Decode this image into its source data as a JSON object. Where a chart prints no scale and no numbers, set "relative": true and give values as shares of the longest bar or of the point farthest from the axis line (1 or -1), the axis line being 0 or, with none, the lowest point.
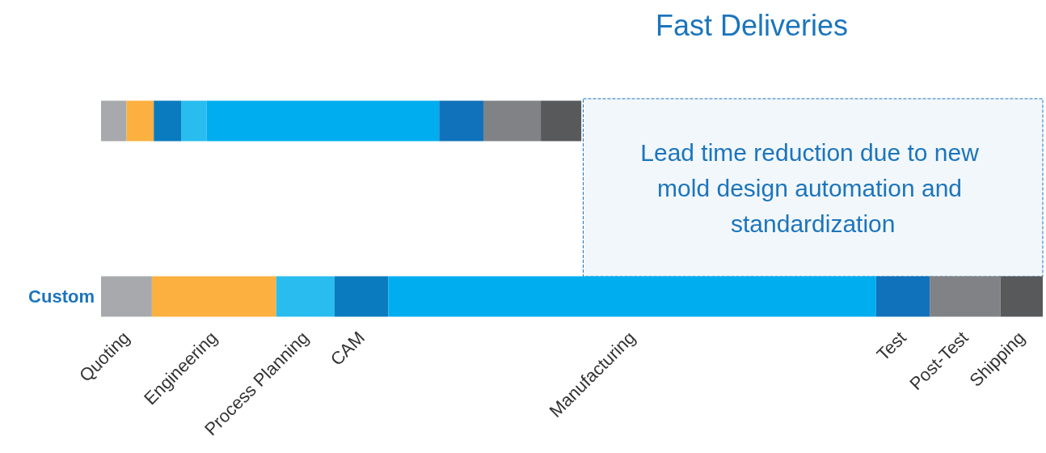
{
  "chart_data": {
    "type": "bar",
    "title": "Fast Deliveries",
    "orientation": "horizontal",
    "stacked": true,
    "relative": true,
    "categories": [
      null,
      "Custom"
    ],
    "legend": false,
    "series": [
      {
        "name": "Quoting",
        "color": "#a7a9ac",
        "values": [
          0.027,
          0.054
        ]
      },
      {
        "name": "Engineering",
        "color": "#fbb040",
        "values": [
          0.029,
          0.132
        ]
      },
      {
        "color": "#0a7bbf",
        "values": [
          0.029,
          null
        ]
      },
      {
        "name": "Process Planning",
        "color": "#29bcef",
        "values": [
          0.027,
          0.062
        ]
      },
      {
        "name": "CAM",
        "color": "#0a7bbf",
        "values": [
          null,
          0.057
        ]
      },
      {
        "name": "Manufacturing",
        "color": "#00aeef",
        "values": [
          0.247,
          0.518
        ]
      },
      {
        "name": "Test",
        "color": "#1072ba",
        "values": [
          0.047,
          0.057
        ]
      },
      {
        "name": "Post-Test",
        "color": "#808285",
        "values": [
          0.061,
          0.075
        ]
      },
      {
        "name": "Shipping",
        "color": "#58595b",
        "values": [
          0.043,
          0.045
        ]
      }
    ],
    "bands": [
      {
        "axis": "x",
        "from": 0.512,
        "to": 1,
        "label": "Lead time reduction due to new mold design automation and standardization",
        "color": "#1c75bc"
      }
    ]
  }
}
